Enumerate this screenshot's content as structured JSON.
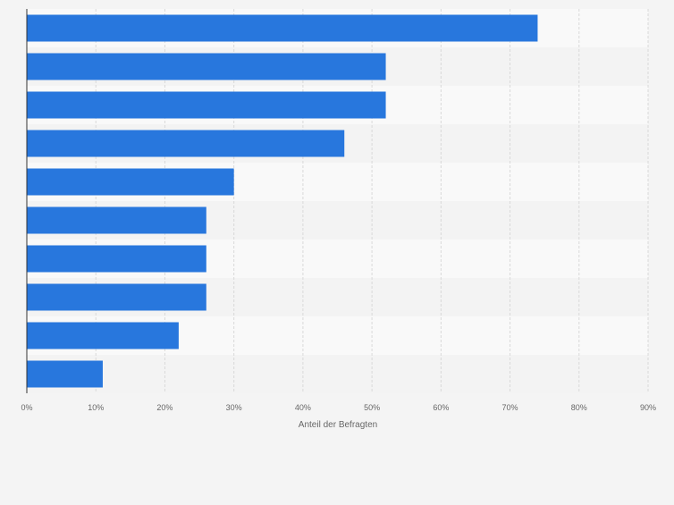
{
  "chart_data": {
    "type": "bar",
    "orientation": "horizontal",
    "categories": [
      "",
      "",
      "",
      "",
      "",
      "",
      "",
      "",
      "",
      ""
    ],
    "values": [
      74,
      52,
      52,
      46,
      30,
      26,
      26,
      26,
      22,
      11
    ],
    "xlabel": "Anteil der Befragten",
    "ylabel": "",
    "xlim": [
      0,
      90
    ],
    "xticks": [
      0,
      10,
      20,
      30,
      40,
      50,
      60,
      70,
      80,
      90
    ],
    "xtick_labels": [
      "0%",
      "10%",
      "20%",
      "30%",
      "40%",
      "50%",
      "60%",
      "70%",
      "80%",
      "90%"
    ],
    "grid": true,
    "colors": {
      "bar": "#2877dd",
      "band_light": "#f9f9f9",
      "band_dark": "#f3f3f3",
      "grid": "#d9d9d9",
      "axis": "#333333",
      "tick_text": "#666666"
    }
  }
}
